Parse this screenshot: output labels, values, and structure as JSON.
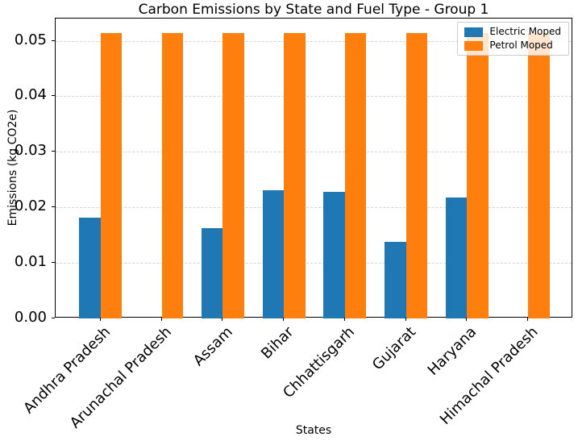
{
  "chart_data": {
    "type": "bar",
    "title": "Carbon Emissions by State and Fuel Type - Group 1",
    "xlabel": "States",
    "ylabel": "Emissions (kg CO2e)",
    "categories": [
      "Andhra Pradesh",
      "Arunachal Pradesh",
      "Assam",
      "Bihar",
      "Chhattisgarh",
      "Gujarat",
      "Haryana",
      "Himachal Pradesh"
    ],
    "series": [
      {
        "name": "Electric Moped",
        "color": "#1f77b4",
        "values": [
          0.0182,
          0,
          0.0163,
          0.0231,
          0.0228,
          0.0138,
          0.0218,
          0
        ]
      },
      {
        "name": "Petrol Moped",
        "color": "#ff7f0e",
        "values": [
          0.0514,
          0.0514,
          0.0514,
          0.0514,
          0.0514,
          0.0514,
          0.0514,
          0.0514
        ]
      }
    ],
    "ylim": [
      0,
      0.054
    ],
    "ytick_step": 0.01,
    "ytick_labels": [
      "0.00",
      "0.01",
      "0.02",
      "0.03",
      "0.04",
      "0.05"
    ],
    "grid": "horizontal-dashed",
    "legend_position": "upper-right",
    "bar_width_fraction": 0.35,
    "x_tick_rotation_deg": 45,
    "colors": {
      "grid": "#d4d4d4",
      "spine": "#000000",
      "background": "#ffffff"
    }
  }
}
